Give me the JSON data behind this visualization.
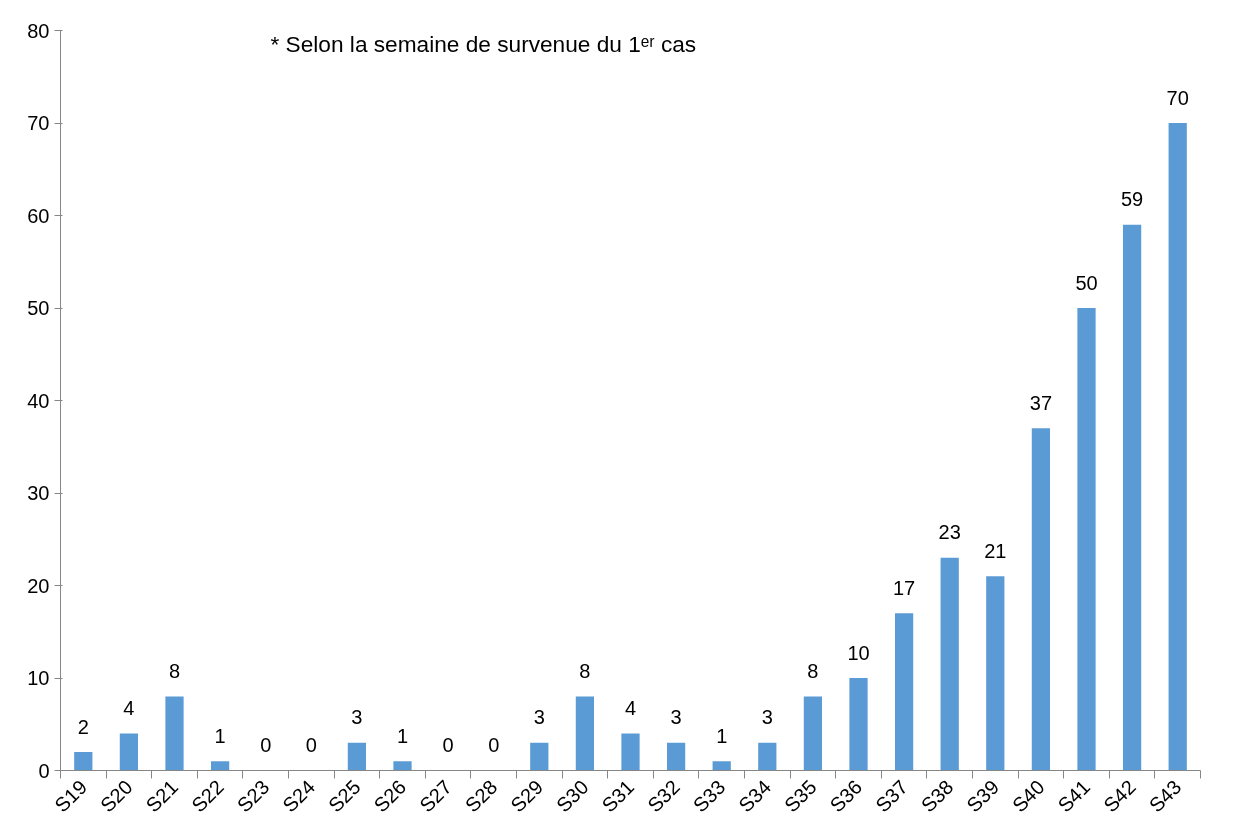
{
  "chart_data": {
    "type": "bar",
    "categories": [
      "S19",
      "S20",
      "S21",
      "S22",
      "S23",
      "S24",
      "S25",
      "S26",
      "S27",
      "S28",
      "S29",
      "S30",
      "S31",
      "S32",
      "S33",
      "S34",
      "S35",
      "S36",
      "S37",
      "S38",
      "S39",
      "S40",
      "S41",
      "S42",
      "S43"
    ],
    "values": [
      2,
      4,
      8,
      1,
      0,
      0,
      3,
      1,
      0,
      0,
      3,
      8,
      4,
      3,
      1,
      3,
      8,
      10,
      17,
      23,
      21,
      37,
      50,
      59,
      70
    ],
    "color": "#5b9bd5",
    "ylim": [
      0,
      80
    ],
    "yticks": [
      0,
      10,
      20,
      30,
      40,
      50,
      60,
      70,
      80
    ],
    "grid": false,
    "data_labels": true,
    "annotations": [
      "* Selon la semaine de survenue du 1ᵉʳ cas"
    ]
  }
}
